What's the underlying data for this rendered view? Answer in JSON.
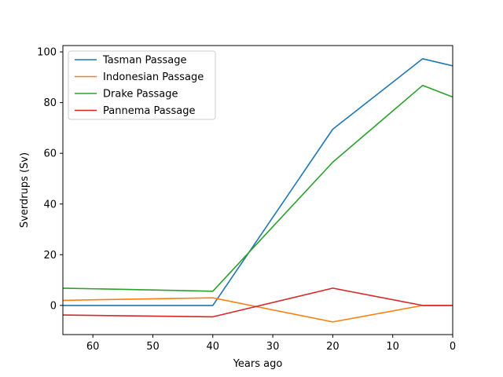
{
  "chart_data": {
    "type": "line",
    "xlabel": "Years ago",
    "ylabel": "Sverdrups (Sv)",
    "x_inverted": true,
    "xlim": [
      65,
      0
    ],
    "ylim": [
      -11.5,
      102.5
    ],
    "xticks": [
      60,
      50,
      40,
      30,
      20,
      10,
      0
    ],
    "yticks": [
      0,
      20,
      40,
      60,
      80,
      100
    ],
    "legend_position": "top-left",
    "grid": false,
    "series": [
      {
        "name": "Tasman Passage",
        "color": "#1f77b4",
        "x": [
          65,
          40,
          20,
          5,
          0
        ],
        "y": [
          0,
          0,
          69.5,
          97.3,
          94.5
        ]
      },
      {
        "name": "Indonesian Passage",
        "color": "#ff7f0e",
        "x": [
          65,
          40,
          20,
          5,
          0
        ],
        "y": [
          2,
          3,
          -6.5,
          0,
          0
        ]
      },
      {
        "name": "Drake Passage",
        "color": "#2ca02c",
        "x": [
          65,
          40,
          20,
          5,
          0
        ],
        "y": [
          6.8,
          5.6,
          56.5,
          86.8,
          82.2
        ]
      },
      {
        "name": "Pannema Passage",
        "color": "#d62728",
        "x": [
          65,
          40,
          20,
          5,
          0
        ],
        "y": [
          -3.8,
          -4.5,
          6.8,
          0,
          0
        ]
      }
    ]
  }
}
